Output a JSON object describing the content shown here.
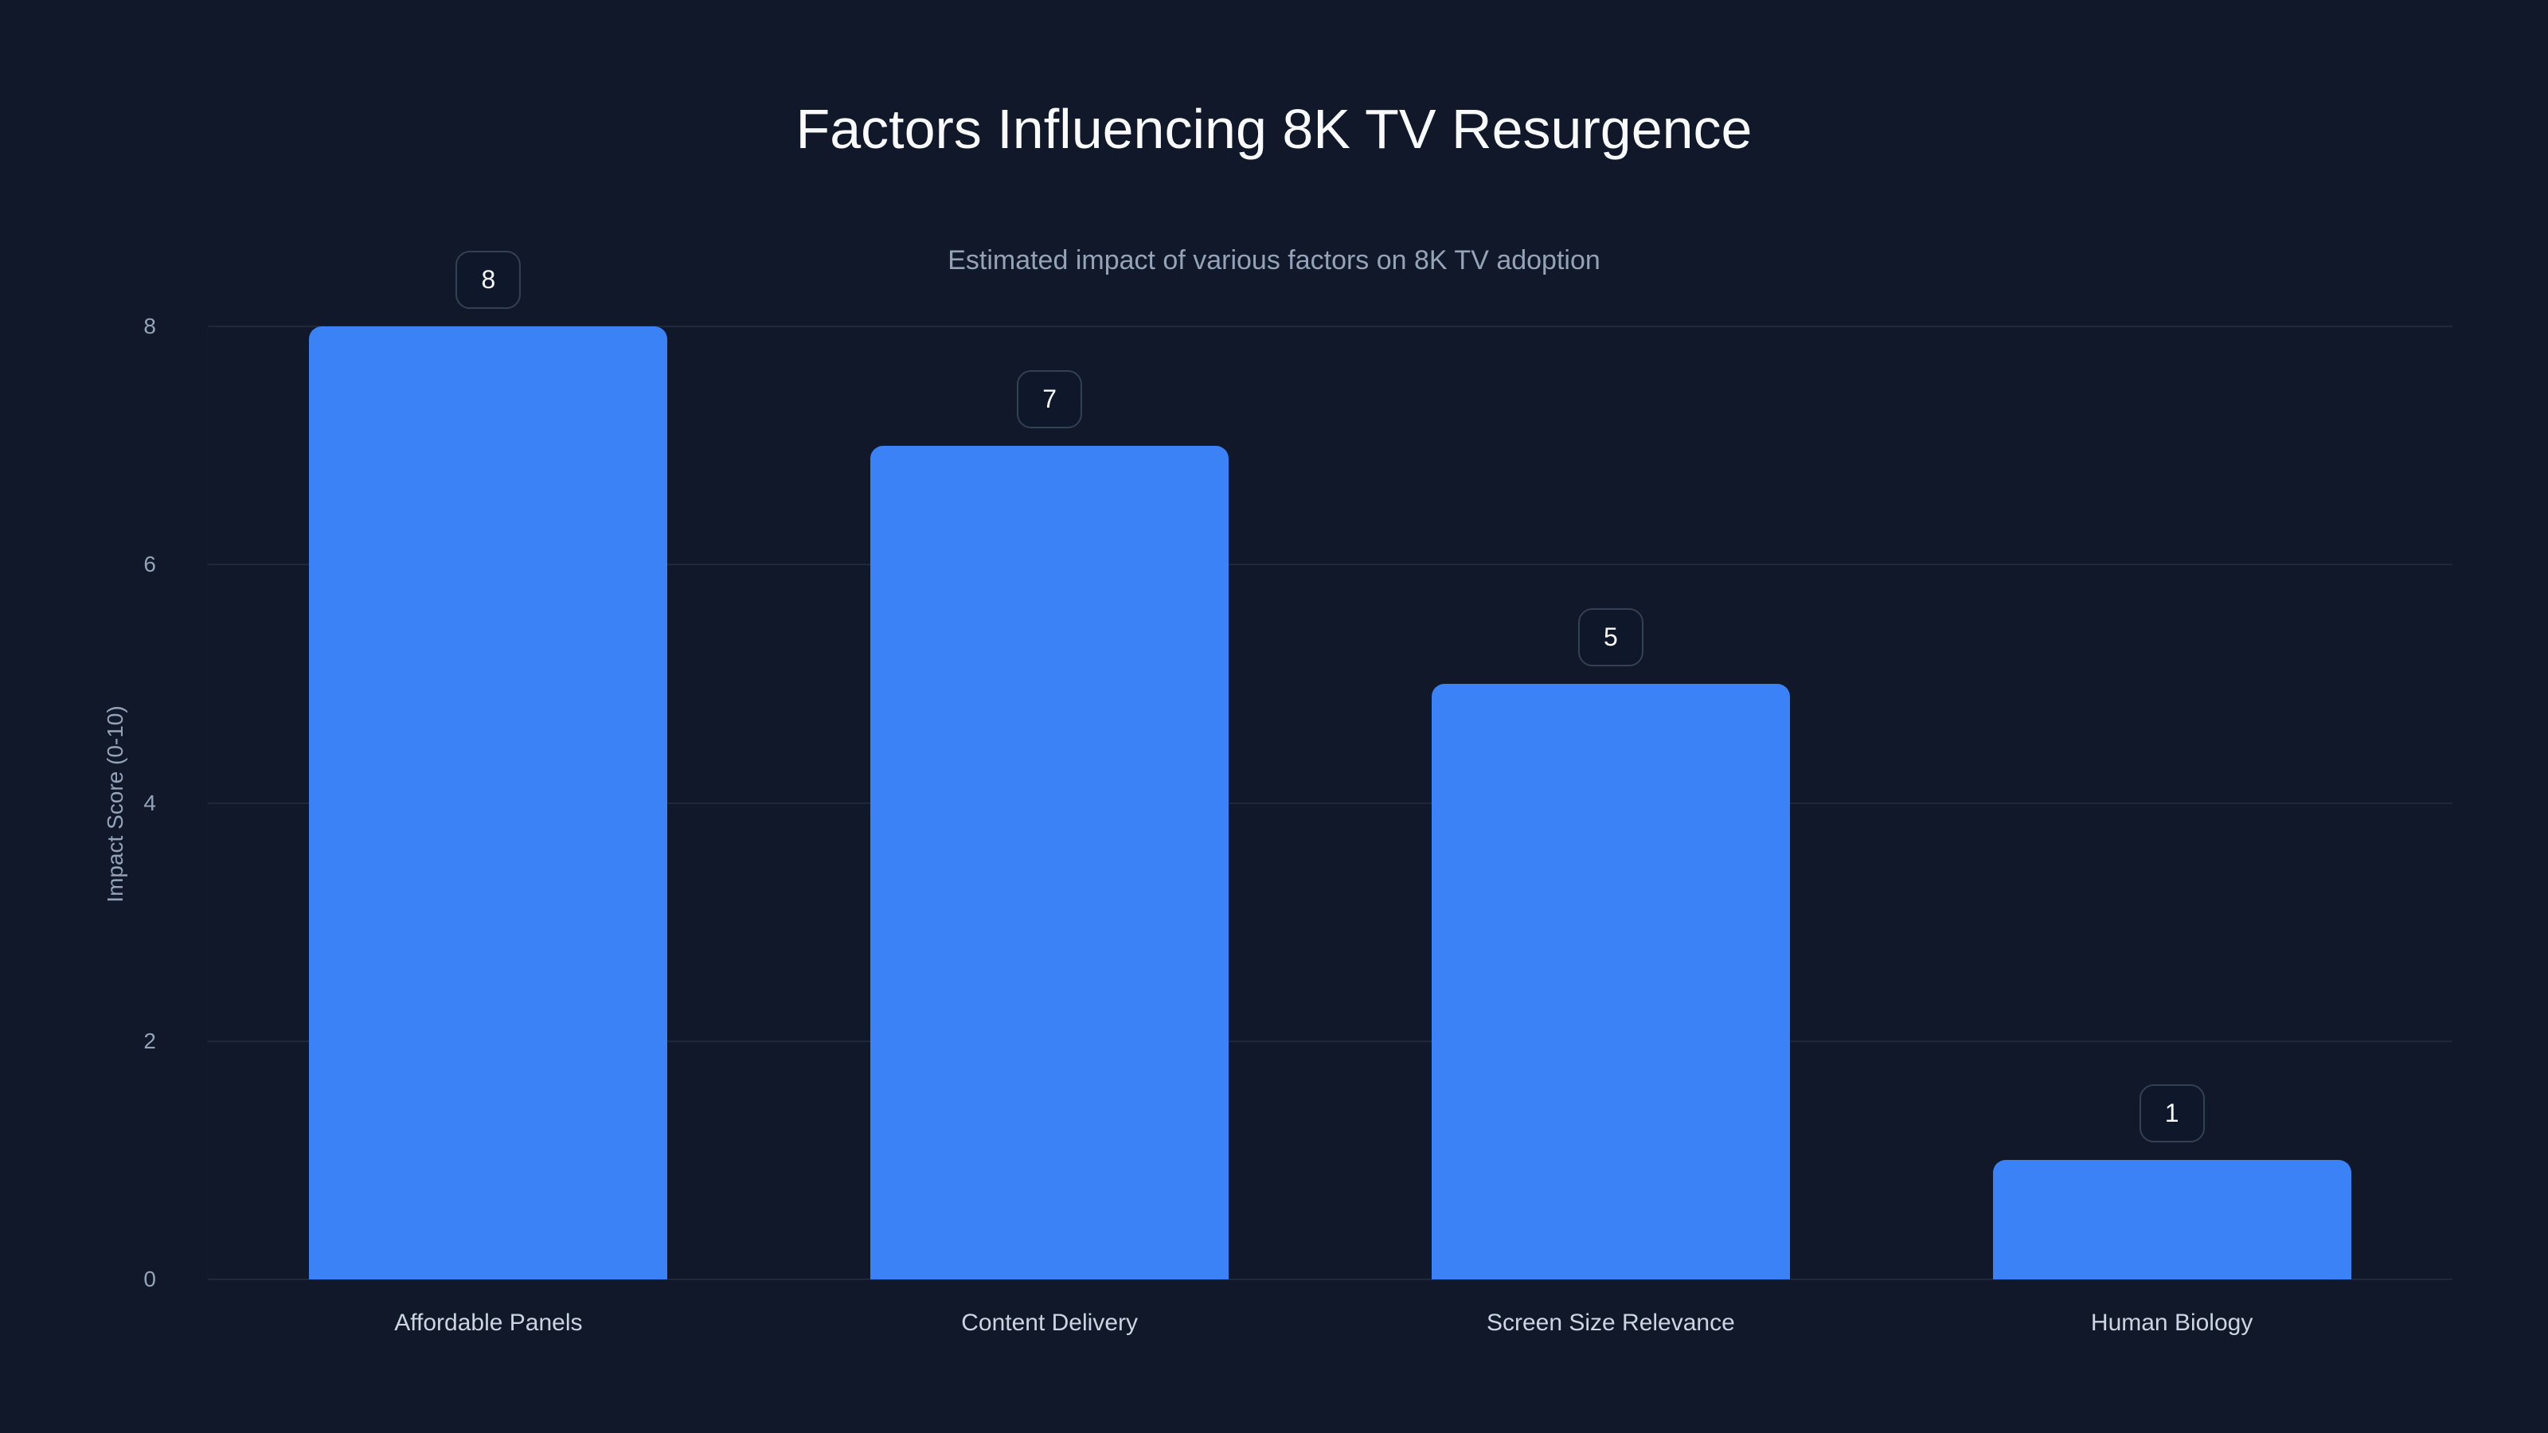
{
  "title": "Factors Influencing 8K TV Resurgence",
  "subtitle": "Estimated impact of various factors on 8K TV adoption",
  "y_axis": {
    "label": "Impact Score (0-10)",
    "ticks": [
      "0",
      "2",
      "4",
      "6",
      "8"
    ]
  },
  "bars": [
    {
      "category": "Affordable Panels",
      "value": 8,
      "value_label": "8"
    },
    {
      "category": "Content Delivery",
      "value": 7,
      "value_label": "7"
    },
    {
      "category": "Screen Size Relevance",
      "value": 5,
      "value_label": "5"
    },
    {
      "category": "Human Biology",
      "value": 1,
      "value_label": "1"
    }
  ],
  "colors": {
    "background": "#10182a",
    "bar": "#3b82f6",
    "gridline": "#1e293b",
    "title": "#f8fafc",
    "subtitle": "#94a3b8",
    "tick_label": "#94a3b8",
    "category_label": "#cbd5e1",
    "value_box_border": "#334155"
  },
  "chart_data": {
    "type": "bar",
    "title": "Factors Influencing 8K TV Resurgence",
    "subtitle": "Estimated impact of various factors on 8K TV adoption",
    "categories": [
      "Affordable Panels",
      "Content Delivery",
      "Screen Size Relevance",
      "Human Biology"
    ],
    "values": [
      8,
      7,
      5,
      1
    ],
    "xlabel": "",
    "ylabel": "Impact Score (0-10)",
    "ylim": [
      0,
      8
    ],
    "yticks": [
      0,
      2,
      4,
      6,
      8
    ],
    "grid": {
      "horizontal": true,
      "vertical": false
    },
    "legend": null,
    "data_labels": true,
    "bar_color": "#3b82f6"
  }
}
